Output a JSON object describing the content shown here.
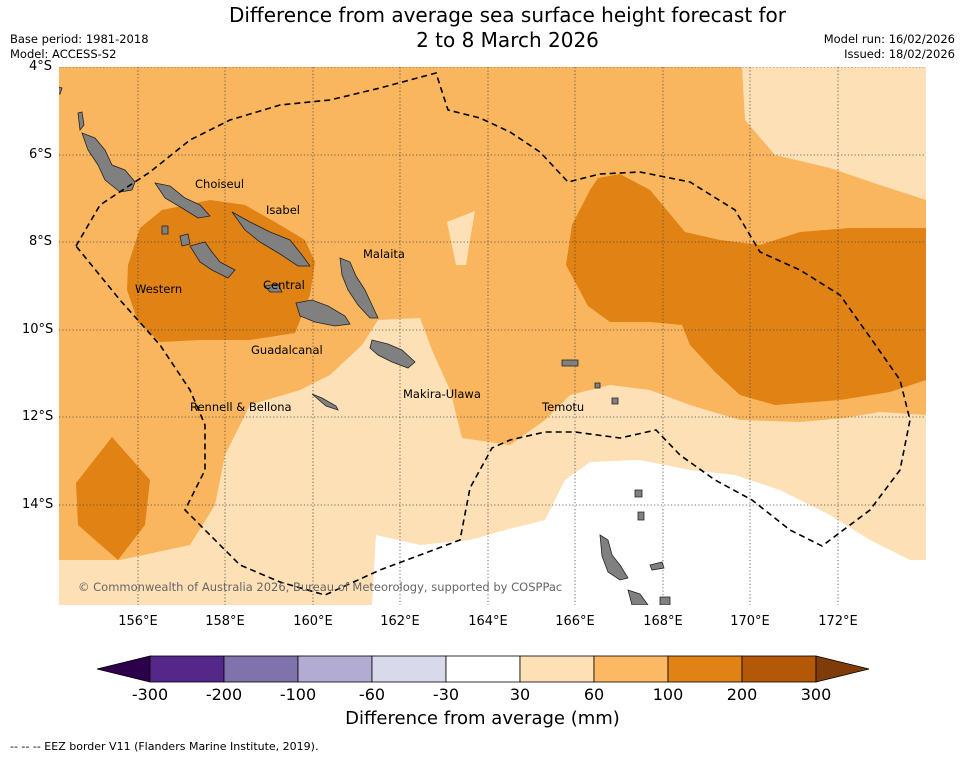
{
  "header": {
    "title_line1": "Difference from average sea surface height forecast for",
    "title_line2": "2 to 8 March 2026",
    "base_period": "Base period: 1981-2018",
    "model": "Model: ACCESS-S2",
    "model_run": "Model run: 16/02/2026",
    "issued": "Issued: 18/02/2026"
  },
  "map": {
    "lat_labels": [
      "4°S",
      "6°S",
      "8°S",
      "10°S",
      "12°S",
      "14°S"
    ],
    "lon_labels": [
      "156°E",
      "158°E",
      "160°E",
      "162°E",
      "164°E",
      "166°E",
      "168°E",
      "170°E",
      "172°E"
    ],
    "regions": [
      "Choiseul",
      "Isabel",
      "Malaita",
      "Western",
      "Central",
      "Guadalcanal",
      "Makira-Ulawa",
      "Rennell & Bellona",
      "Temotu"
    ],
    "copyright": "© Commonwealth of Australia 2026, Bureau of Meteorology, supported by COSPPac",
    "colors": {
      "land": "#808080",
      "c30_60": "#fde0b6",
      "c60_100": "#f9b65e",
      "c100_200": "#e08214",
      "ocean_neutral": "#ffffff"
    }
  },
  "colorbar": {
    "title": "Difference from average (mm)",
    "ticks": [
      "-300",
      "-200",
      "-100",
      "-60",
      "-30",
      "30",
      "60",
      "100",
      "200",
      "300"
    ],
    "colors": [
      "#2d004b",
      "#542788",
      "#8073ac",
      "#b2abd2",
      "#d8daeb",
      "#ffffff",
      "#fee0b6",
      "#fdb863",
      "#e08214",
      "#b35806",
      "#7f3b08"
    ]
  },
  "footnote": "--  --  -- EEZ border V11 (Flanders Marine Institute, 2019)."
}
